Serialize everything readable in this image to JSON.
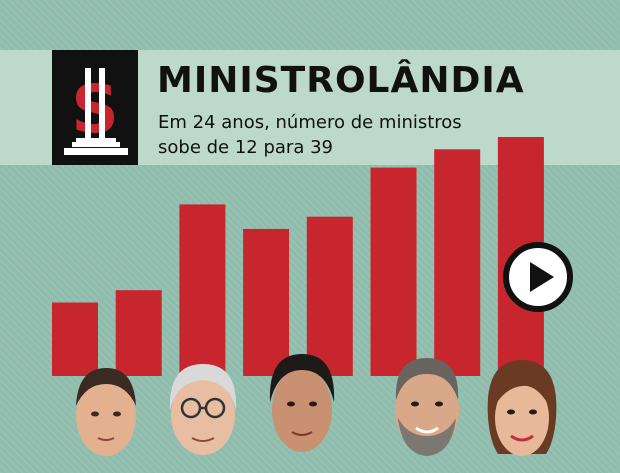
{
  "header": {
    "title": "MINISTROLÂNDIA",
    "subtitle": "Em 24 anos, número de ministros sobe de 12 para 39"
  },
  "colors": {
    "background": "#8fbcac",
    "header_band": "#bcd9cb",
    "bar": "#c8262e",
    "logo_bg": "#111111",
    "logo_symbol": "#c8262e"
  },
  "icons": {
    "logo": "dollar-building-icon",
    "play": "play-icon"
  },
  "chart_data": {
    "type": "bar",
    "title": "MINISTROLÂNDIA",
    "subtitle": "Em 24 anos, número de ministros sobe de 12 para 39",
    "xlabel": "",
    "ylabel": "",
    "categories": [
      "",
      "",
      "",
      "",
      "",
      "",
      "",
      ""
    ],
    "values": [
      12,
      14,
      28,
      24,
      26,
      34,
      37,
      39
    ],
    "ylim": [
      0,
      39
    ],
    "grid": false,
    "legend": "none"
  }
}
